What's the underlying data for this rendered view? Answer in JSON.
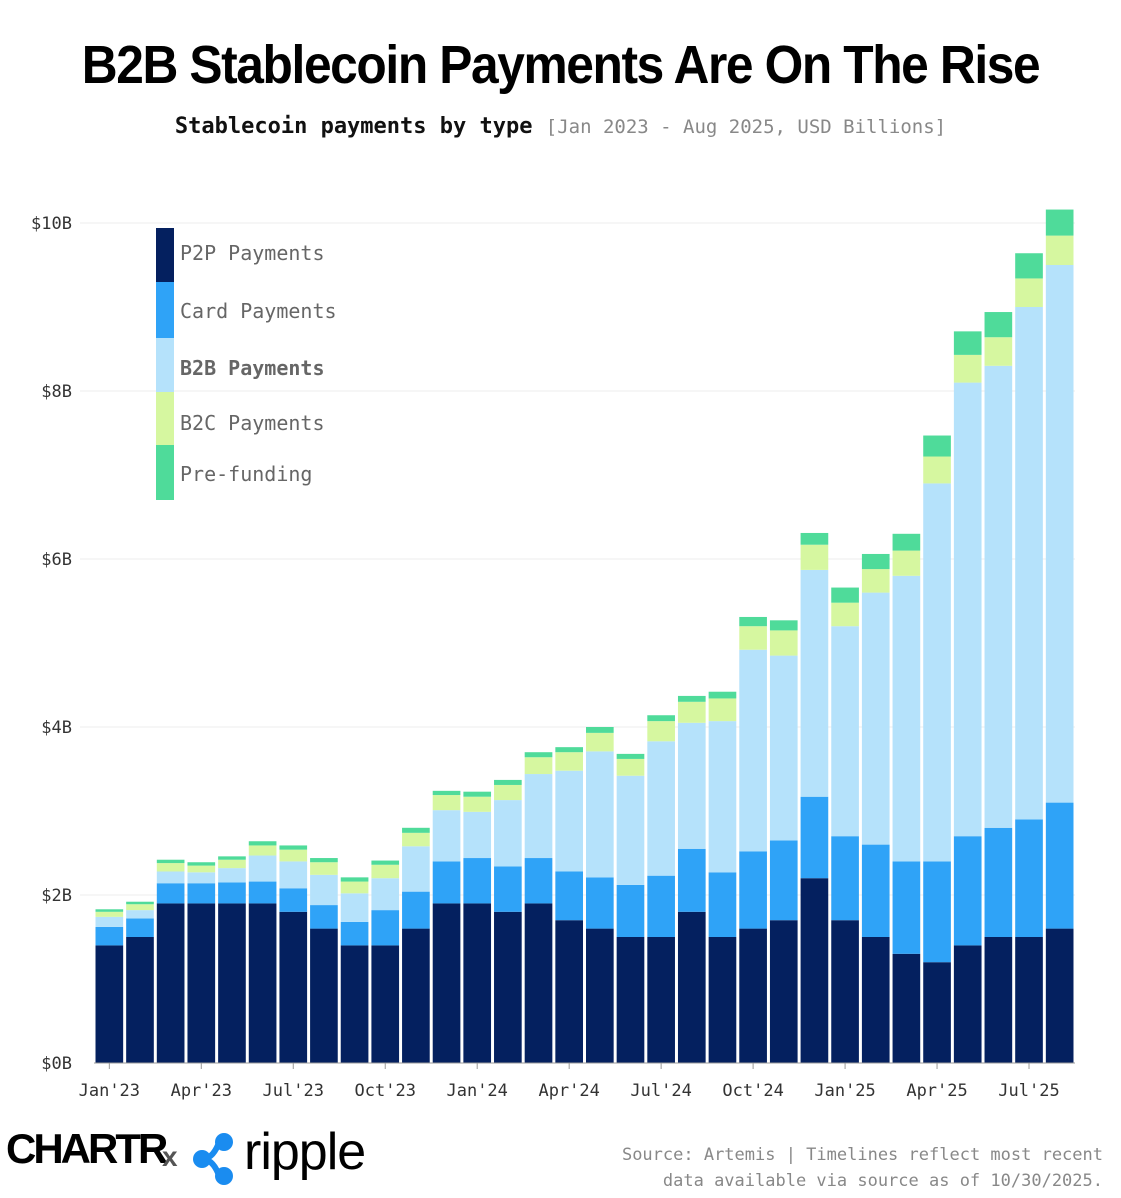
{
  "header": {
    "title": "B2B Stablecoin Payments Are On The Rise",
    "subtitle": "Stablecoin payments by type",
    "subtitle_note": "[Jan 2023 - Aug 2025, USD Billions]"
  },
  "footer": {
    "brand_left": "CHARTR",
    "separator": "x",
    "brand_right": "ripple",
    "source_line1": "Source: Artemis | Timelines reflect most recent",
    "source_line2": "data available via source as of 10/30/2025."
  },
  "colors": {
    "p2p": "#04205f",
    "card": "#2fa3f7",
    "b2b": "#b5e2fb",
    "b2c": "#d6f7a0",
    "prefunding": "#4fdb9a",
    "grid": "#ececec",
    "axis_text": "#333333",
    "legend_text": "#666666"
  },
  "chart_data": {
    "type": "bar",
    "stacked": true,
    "categories": [
      "Jan'23",
      "Feb'23",
      "Mar'23",
      "Apr'23",
      "May'23",
      "Jun'23",
      "Jul'23",
      "Aug'23",
      "Sep'23",
      "Oct'23",
      "Nov'23",
      "Dec'23",
      "Jan'24",
      "Feb'24",
      "Mar'24",
      "Apr'24",
      "May'24",
      "Jun'24",
      "Jul'24",
      "Aug'24",
      "Sep'24",
      "Oct'24",
      "Nov'24",
      "Dec'24",
      "Jan'25",
      "Feb'25",
      "Mar'25",
      "Apr'25",
      "May'25",
      "Jun'25",
      "Jul'25",
      "Aug'25"
    ],
    "x_tick_labels": [
      "Jan'23",
      "Apr'23",
      "Jul'23",
      "Oct'23",
      "Jan'24",
      "Apr'24",
      "Jul'24",
      "Oct'24",
      "Jan'25",
      "Apr'25",
      "Jul'25"
    ],
    "y_tick_labels": [
      "$0B",
      "$2B",
      "$4B",
      "$6B",
      "$8B",
      "$10B"
    ],
    "y_ticks": [
      0,
      2,
      4,
      6,
      8,
      10
    ],
    "ylim": [
      0,
      10.2
    ],
    "grid": true,
    "legend_position": "top-left",
    "series": [
      {
        "name": "P2P Payments",
        "color_key": "p2p",
        "bold": false,
        "values": [
          1.4,
          1.5,
          1.9,
          1.9,
          1.9,
          1.9,
          1.8,
          1.6,
          1.4,
          1.4,
          1.6,
          1.9,
          1.9,
          1.8,
          1.9,
          1.7,
          1.6,
          1.5,
          1.5,
          1.8,
          1.5,
          1.6,
          1.7,
          2.2,
          1.7,
          1.5,
          1.3,
          1.2,
          1.4,
          1.5,
          1.5,
          1.6
        ]
      },
      {
        "name": "Card Payments",
        "color_key": "card",
        "bold": false,
        "values": [
          0.22,
          0.22,
          0.24,
          0.24,
          0.25,
          0.26,
          0.28,
          0.28,
          0.28,
          0.42,
          0.44,
          0.5,
          0.54,
          0.54,
          0.54,
          0.58,
          0.61,
          0.62,
          0.73,
          0.75,
          0.77,
          0.92,
          0.95,
          0.97,
          1.0,
          1.1,
          1.1,
          1.2,
          1.3,
          1.3,
          1.4,
          1.5
        ]
      },
      {
        "name": "B2B Payments",
        "color_key": "b2b",
        "bold": true,
        "values": [
          0.12,
          0.1,
          0.14,
          0.13,
          0.17,
          0.31,
          0.32,
          0.36,
          0.34,
          0.38,
          0.54,
          0.61,
          0.55,
          0.79,
          1.0,
          1.2,
          1.5,
          1.3,
          1.6,
          1.5,
          1.8,
          2.4,
          2.2,
          2.7,
          2.5,
          3.0,
          3.4,
          4.5,
          5.4,
          5.5,
          6.1,
          6.4
        ]
      },
      {
        "name": "B2C Payments",
        "color_key": "b2c",
        "bold": false,
        "values": [
          0.06,
          0.07,
          0.1,
          0.08,
          0.1,
          0.12,
          0.14,
          0.15,
          0.14,
          0.16,
          0.16,
          0.18,
          0.18,
          0.18,
          0.2,
          0.22,
          0.22,
          0.2,
          0.24,
          0.25,
          0.27,
          0.28,
          0.3,
          0.3,
          0.28,
          0.28,
          0.3,
          0.32,
          0.33,
          0.34,
          0.34,
          0.35
        ]
      },
      {
        "name": "Pre-funding",
        "color_key": "prefunding",
        "bold": false,
        "values": [
          0.03,
          0.03,
          0.04,
          0.04,
          0.04,
          0.05,
          0.05,
          0.05,
          0.05,
          0.05,
          0.06,
          0.05,
          0.06,
          0.06,
          0.06,
          0.06,
          0.07,
          0.06,
          0.07,
          0.07,
          0.08,
          0.11,
          0.12,
          0.14,
          0.18,
          0.18,
          0.2,
          0.25,
          0.28,
          0.3,
          0.3,
          0.31
        ]
      }
    ]
  }
}
